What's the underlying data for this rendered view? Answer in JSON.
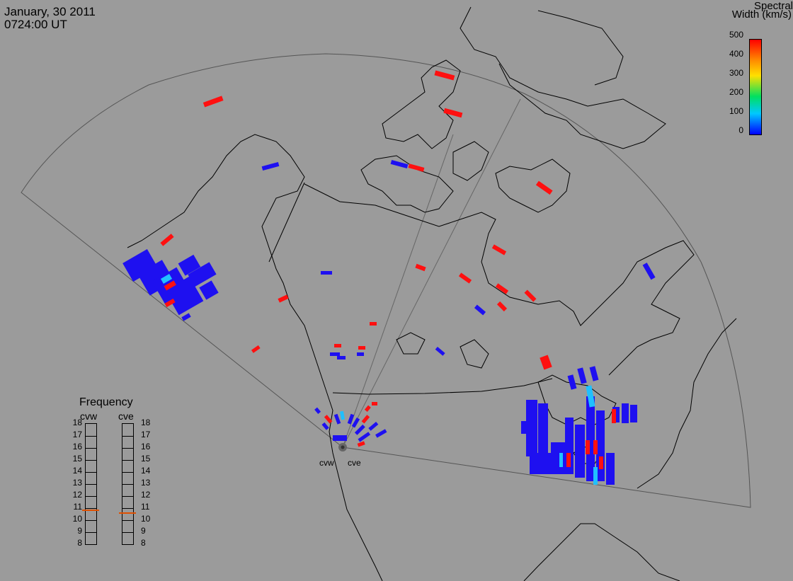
{
  "header": {
    "date": "January, 30 2011",
    "time": "0724:00 UT"
  },
  "colorbar": {
    "title_line1": "Spectral",
    "title_line2": "Width (km/s)",
    "ticks": [
      "500",
      "400",
      "300",
      "200",
      "100",
      "0"
    ],
    "colors": [
      "#0000ff",
      "#00c8ff",
      "#00e060",
      "#ffe000",
      "#ff8c00",
      "#ff0000"
    ]
  },
  "frequency": {
    "title": "Frequency",
    "radar_left": "cvw",
    "radar_right": "cve",
    "scale": [
      "18",
      "17",
      "16",
      "15",
      "14",
      "13",
      "12",
      "11",
      "10",
      "9",
      "8"
    ],
    "cvw_value": 10.8,
    "cve_value": 10.6,
    "marker_color": "#e05000"
  },
  "radars": {
    "left_label": "cvw",
    "right_label": "cve"
  },
  "colors": {
    "background": "#9b9b9b",
    "coast": "#000000",
    "fov": "#555555",
    "low": "#1e10f0",
    "high": "#ff1010",
    "mid": "#20c0ff"
  }
}
